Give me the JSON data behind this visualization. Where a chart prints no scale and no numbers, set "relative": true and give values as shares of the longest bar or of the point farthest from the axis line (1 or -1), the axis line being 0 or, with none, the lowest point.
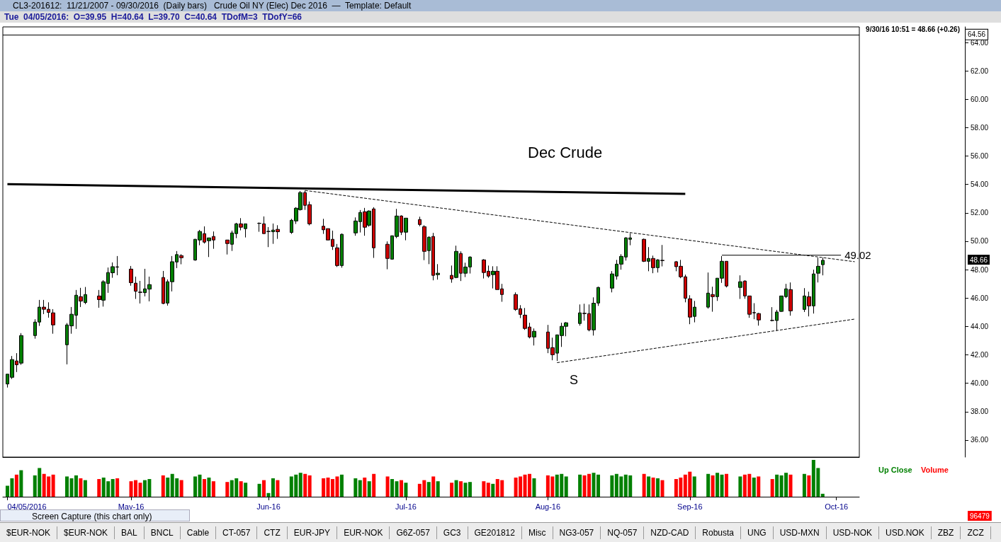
{
  "chart_data": [
    {
      "type": "candlestick",
      "title": "CL3-201612:  11/21/2007 - 09/30/2016  (Daily bars)   Crude Oil NY (Elec) Dec 2016  —  Template: Default",
      "subtitle": "Tue  04/05/2016:  O=39.95  H=40.64  L=39.70  C=40.64  TDofM=3  TDofY=66",
      "x": [
        "2016-04-05",
        "2016-04-06",
        "2016-04-07",
        "2016-04-08",
        "2016-04-11",
        "2016-04-12",
        "2016-04-13",
        "2016-04-14",
        "2016-04-15",
        "2016-04-18",
        "2016-04-19",
        "2016-04-20",
        "2016-04-21",
        "2016-04-22",
        "2016-04-25",
        "2016-04-26",
        "2016-04-27",
        "2016-04-28",
        "2016-04-29",
        "2016-05-02",
        "2016-05-03",
        "2016-05-04",
        "2016-05-05",
        "2016-05-06",
        "2016-05-09",
        "2016-05-10",
        "2016-05-11",
        "2016-05-12",
        "2016-05-13",
        "2016-05-16",
        "2016-05-17",
        "2016-05-18",
        "2016-05-19",
        "2016-05-20",
        "2016-05-23",
        "2016-05-24",
        "2016-05-25",
        "2016-05-26",
        "2016-05-27",
        "2016-05-30",
        "2016-05-31",
        "2016-06-01",
        "2016-06-02",
        "2016-06-03",
        "2016-06-06",
        "2016-06-07",
        "2016-06-08",
        "2016-06-09",
        "2016-06-10",
        "2016-06-13",
        "2016-06-14",
        "2016-06-15",
        "2016-06-16",
        "2016-06-17",
        "2016-06-20",
        "2016-06-21",
        "2016-06-22",
        "2016-06-23",
        "2016-06-24",
        "2016-06-27",
        "2016-06-28",
        "2016-06-29",
        "2016-06-30",
        "2016-07-01",
        "2016-07-04",
        "2016-07-05",
        "2016-07-06",
        "2016-07-07",
        "2016-07-08",
        "2016-07-11",
        "2016-07-12",
        "2016-07-13",
        "2016-07-14",
        "2016-07-15",
        "2016-07-18",
        "2016-07-19",
        "2016-07-20",
        "2016-07-21",
        "2016-07-22",
        "2016-07-25",
        "2016-07-26",
        "2016-07-27",
        "2016-07-28",
        "2016-07-29",
        "2016-08-01",
        "2016-08-02",
        "2016-08-03",
        "2016-08-04",
        "2016-08-05",
        "2016-08-08",
        "2016-08-09",
        "2016-08-10",
        "2016-08-11",
        "2016-08-12",
        "2016-08-15",
        "2016-08-16",
        "2016-08-17",
        "2016-08-18",
        "2016-08-19",
        "2016-08-22",
        "2016-08-23",
        "2016-08-24",
        "2016-08-25",
        "2016-08-26",
        "2016-08-29",
        "2016-08-30",
        "2016-08-31",
        "2016-09-01",
        "2016-09-02",
        "2016-09-05",
        "2016-09-06",
        "2016-09-07",
        "2016-09-08",
        "2016-09-09",
        "2016-09-12",
        "2016-09-13",
        "2016-09-14",
        "2016-09-15",
        "2016-09-16",
        "2016-09-19",
        "2016-09-20",
        "2016-09-21",
        "2016-09-22",
        "2016-09-23",
        "2016-09-26",
        "2016-09-27",
        "2016-09-28",
        "2016-09-29",
        "2016-09-30"
      ],
      "ohlc": [
        [
          39.95,
          40.64,
          39.7,
          40.64
        ],
        [
          40.42,
          41.92,
          40.3,
          41.67
        ],
        [
          41.57,
          42.12,
          40.79,
          41.3
        ],
        [
          41.42,
          43.53,
          41.3,
          43.36
        ],
        [
          43.36,
          44.51,
          43.14,
          44.31
        ],
        [
          44.31,
          45.87,
          44.04,
          45.36
        ],
        [
          45.36,
          45.87,
          44.87,
          45.21
        ],
        [
          45.21,
          45.7,
          44.62,
          44.99
        ],
        [
          44.96,
          45.22,
          43.49,
          44.11
        ],
        [
          42.71,
          44.24,
          41.33,
          44.11
        ],
        [
          44.04,
          45.37,
          43.49,
          44.86
        ],
        [
          44.79,
          46.57,
          43.83,
          46.2
        ],
        [
          46.1,
          46.72,
          45.37,
          45.79
        ],
        [
          45.69,
          46.78,
          45.57,
          46.25
        ],
        [
          46.15,
          46.57,
          45.32,
          45.89
        ],
        [
          45.85,
          47.26,
          45.4,
          47.15
        ],
        [
          47.03,
          48.15,
          46.37,
          47.8
        ],
        [
          47.78,
          48.51,
          47.43,
          48.21
        ],
        [
          48.2,
          48.96,
          47.61,
          48.18
        ],
        [
          48.04,
          48.26,
          46.87,
          47.08
        ],
        [
          47.05,
          47.51,
          45.94,
          46.48
        ],
        [
          46.42,
          47.21,
          45.62,
          46.4
        ],
        [
          46.38,
          48.06,
          46.12,
          46.65
        ],
        [
          46.63,
          47.51,
          45.77,
          46.95
        ],
        [
          47.45,
          47.91,
          45.57,
          45.62
        ],
        [
          45.65,
          47.31,
          45.47,
          47.15
        ],
        [
          47.15,
          48.96,
          46.47,
          48.56
        ],
        [
          48.54,
          49.31,
          48.11,
          49.06
        ],
        [
          48.99,
          49.09,
          48.38,
          48.84
        ],
        [
          48.68,
          50.16,
          48.63,
          50.14
        ],
        [
          50.09,
          50.8,
          49.72,
          50.69
        ],
        [
          50.54,
          51.05,
          49.84,
          49.94
        ],
        [
          50.04,
          50.24,
          48.89,
          50.24
        ],
        [
          50.34,
          50.69,
          49.47,
          50.09
        ],
        [
          50.09,
          50.09,
          49.07,
          49.84
        ],
        [
          49.79,
          50.75,
          49.32,
          50.59
        ],
        [
          50.54,
          51.3,
          50.22,
          51.23
        ],
        [
          51.23,
          51.63,
          50.77,
          50.99
        ],
        [
          50.89,
          51.23,
          50.27,
          51.23
        ],
        [
          51.26,
          51.33,
          50.67,
          51.27
        ],
        [
          51.23,
          51.75,
          50.54,
          50.54
        ],
        [
          50.7,
          51.0,
          49.59,
          50.69
        ],
        [
          50.67,
          51.25,
          49.82,
          50.79
        ],
        [
          50.84,
          51.13,
          50.17,
          50.67
        ],
        [
          50.62,
          51.58,
          50.52,
          51.48
        ],
        [
          51.43,
          52.4,
          51.22,
          52.33
        ],
        [
          52.23,
          53.54,
          52.16,
          53.43
        ],
        [
          53.43,
          53.58,
          52.21,
          52.53
        ],
        [
          52.58,
          52.8,
          51.12,
          51.23
        ],
        [
          51.06,
          51.58,
          50.52,
          50.81
        ],
        [
          50.89,
          50.89,
          50.09,
          50.09
        ],
        [
          50.14,
          50.75,
          49.39,
          49.64
        ],
        [
          49.54,
          49.81,
          48.19,
          48.29
        ],
        [
          48.29,
          50.55,
          48.14,
          50.49
        ],
        [
          50.59,
          51.68,
          50.39,
          51.43
        ],
        [
          51.38,
          52.2,
          50.62,
          52.03
        ],
        [
          52.08,
          52.35,
          50.39,
          50.99
        ],
        [
          51.13,
          52.18,
          51.03,
          52.13
        ],
        [
          52.28,
          52.4,
          48.83,
          49.54
        ],
        [
          49.79,
          49.99,
          48.03,
          48.79
        ],
        [
          48.74,
          50.39,
          48.72,
          50.39
        ],
        [
          50.34,
          52.28,
          50.22,
          51.78
        ],
        [
          51.78,
          51.83,
          50.44,
          50.64
        ],
        [
          50.64,
          51.63,
          50.07,
          51.63
        ],
        [
          51.53,
          51.73,
          51.06,
          51.18
        ],
        [
          51.03,
          51.13,
          48.67,
          49.29
        ],
        [
          49.34,
          50.34,
          48.39,
          50.29
        ],
        [
          50.34,
          50.59,
          47.25,
          47.6
        ],
        [
          47.65,
          48.39,
          47.3,
          47.75
        ],
        [
          47.6,
          48.29,
          47.08,
          47.35
        ],
        [
          47.45,
          49.69,
          47.4,
          49.29
        ],
        [
          49.14,
          49.29,
          47.2,
          47.75
        ],
        [
          47.75,
          48.49,
          47.48,
          48.19
        ],
        [
          48.19,
          48.94,
          47.73,
          48.89
        ],
        [
          48.69,
          48.74,
          47.38,
          47.8
        ],
        [
          47.89,
          48.29,
          47.43,
          47.55
        ],
        [
          47.65,
          48.24,
          46.68,
          47.89
        ],
        [
          47.89,
          48.24,
          46.6,
          46.6
        ],
        [
          46.65,
          47.0,
          45.74,
          46.25
        ],
        [
          46.25,
          46.4,
          45.1,
          45.2
        ],
        [
          45.25,
          45.5,
          44.59,
          44.85
        ],
        [
          44.8,
          45.3,
          43.76,
          43.86
        ],
        [
          43.96,
          44.26,
          43.16,
          43.26
        ],
        [
          43.26,
          43.86,
          42.66,
          43.66
        ],
        [
          43.61,
          44.11,
          42.12,
          42.46
        ],
        [
          42.51,
          43.21,
          41.62,
          42.01
        ],
        [
          42.12,
          43.41,
          41.57,
          43.41
        ],
        [
          43.36,
          44.26,
          42.56,
          44.01
        ],
        [
          44.01,
          44.31,
          43.31,
          44.26
        ],
        [
          44.21,
          45.55,
          44.06,
          44.96
        ],
        [
          44.93,
          45.6,
          44.41,
          44.91
        ],
        [
          44.91,
          45.55,
          43.66,
          43.76
        ],
        [
          43.76,
          46.05,
          43.36,
          45.64
        ],
        [
          45.65,
          46.8,
          45.45,
          46.75
        ],
        [
          46.7,
          47.9,
          46.4,
          47.7
        ],
        [
          47.55,
          48.69,
          47.3,
          48.39
        ],
        [
          48.39,
          49.09,
          48.0,
          48.94
        ],
        [
          48.89,
          50.29,
          48.64,
          50.24
        ],
        [
          50.14,
          50.57,
          49.72,
          50.24
        ],
        [
          50.14,
          50.19,
          48.54,
          48.59
        ],
        [
          48.59,
          49.59,
          47.89,
          48.79
        ],
        [
          48.79,
          48.99,
          47.75,
          48.14
        ],
        [
          48.14,
          48.74,
          47.8,
          48.69
        ],
        [
          48.66,
          49.74,
          48.23,
          48.64
        ],
        [
          48.56,
          48.61,
          47.89,
          48.21
        ],
        [
          48.24,
          48.69,
          47.4,
          47.5
        ],
        [
          47.5,
          47.65,
          45.7,
          45.99
        ],
        [
          45.95,
          46.2,
          44.16,
          44.66
        ],
        [
          44.71,
          45.8,
          44.29,
          45.36
        ],
        [
          45.36,
          47.8,
          45.26,
          46.35
        ],
        [
          46.25,
          46.8,
          45.04,
          46.1
        ],
        [
          46.1,
          47.4,
          45.8,
          47.4
        ],
        [
          47.4,
          48.96,
          47.07,
          48.59
        ],
        [
          48.59,
          48.59,
          46.75,
          46.85
        ],
        [
          46.75,
          47.6,
          45.94,
          47.15
        ],
        [
          47.2,
          47.25,
          45.95,
          46.15
        ],
        [
          46.15,
          46.15,
          44.61,
          44.86
        ],
        [
          44.98,
          45.64,
          44.51,
          44.96
        ],
        [
          44.91,
          44.96,
          44.06,
          44.46
        ],
        [
          44.43,
          45.36,
          44.36,
          44.42
        ],
        [
          44.42,
          45.17,
          43.71,
          45.02
        ],
        [
          45.06,
          46.15,
          45.02,
          46.15
        ],
        [
          46.1,
          47.0,
          46.0,
          46.65
        ],
        [
          46.6,
          47.1,
          44.76,
          45.1
        ],
        [
          45.2,
          46.7,
          45.02,
          46.15
        ],
        [
          46.1,
          46.45,
          44.71,
          45.45
        ],
        [
          45.45,
          48.0,
          44.91,
          47.7
        ],
        [
          47.75,
          48.84,
          47.1,
          48.24
        ],
        [
          48.35,
          48.84,
          47.6,
          48.66
        ]
      ],
      "series": [
        {
          "type": "line",
          "x": [
            "2016-04-05",
            "2016-08-31"
          ],
          "values": [
            54.02,
            53.34
          ],
          "color": "#000000",
          "line_style": "solid"
        },
        {
          "type": "line",
          "x": [
            "2016-06-09",
            "2016-10-07"
          ],
          "values": [
            53.58,
            48.56
          ],
          "color": "#000000",
          "line_style": "dashed"
        },
        {
          "type": "line",
          "x": [
            "2016-08-03",
            "2016-10-07"
          ],
          "values": [
            41.45,
            44.52
          ],
          "color": "#000000",
          "line_style": "dashed"
        },
        {
          "type": "line",
          "x": [
            "2016-09-08",
            "2016-10-04"
          ],
          "values": [
            49.02,
            49.02
          ],
          "color": "#000000",
          "line_style": "solid",
          "value_labels": [
            null,
            "49.02"
          ]
        }
      ],
      "xlim": [
        "2016-04-04",
        "2016-10-08"
      ],
      "ylim": [
        34.8,
        65.1
      ],
      "yticks": [
        {
          "value": 36,
          "label": "36.00"
        },
        {
          "value": 38,
          "label": "38.00"
        },
        {
          "value": 40,
          "label": "40.00"
        },
        {
          "value": 42,
          "label": "42.00"
        },
        {
          "value": 44,
          "label": "44.00"
        },
        {
          "value": 46,
          "label": "46.00"
        },
        {
          "value": 48,
          "label": "48.00"
        },
        {
          "value": 50,
          "label": "50.00"
        },
        {
          "value": 52,
          "label": "52.00"
        },
        {
          "value": 54,
          "label": "54.00"
        },
        {
          "value": 56,
          "label": "56.00"
        },
        {
          "value": 58,
          "label": "58.00"
        },
        {
          "value": 60,
          "label": "60.00"
        },
        {
          "value": 62,
          "label": "62.00"
        },
        {
          "value": 64,
          "label": "64.00"
        }
      ],
      "tick_labels": "y",
      "ref_lines": [
        {
          "axis": "y",
          "value": 64.56,
          "label": "64.56"
        }
      ],
      "annotations": [
        "Dec Crude",
        "S",
        "9/30/16 10:51 = 48.66 (+0.26)",
        "48.66"
      ]
    },
    {
      "type": "bar",
      "relative": true,
      "x": [
        "2016-04-05",
        "2016-04-06",
        "2016-04-07",
        "2016-04-08",
        "2016-04-11",
        "2016-04-12",
        "2016-04-13",
        "2016-04-14",
        "2016-04-15",
        "2016-04-18",
        "2016-04-19",
        "2016-04-20",
        "2016-04-21",
        "2016-04-22",
        "2016-04-25",
        "2016-04-26",
        "2016-04-27",
        "2016-04-28",
        "2016-04-29",
        "2016-05-02",
        "2016-05-03",
        "2016-05-04",
        "2016-05-05",
        "2016-05-06",
        "2016-05-09",
        "2016-05-10",
        "2016-05-11",
        "2016-05-12",
        "2016-05-13",
        "2016-05-16",
        "2016-05-17",
        "2016-05-18",
        "2016-05-19",
        "2016-05-20",
        "2016-05-23",
        "2016-05-24",
        "2016-05-25",
        "2016-05-26",
        "2016-05-27",
        "2016-05-30",
        "2016-05-31",
        "2016-06-01",
        "2016-06-02",
        "2016-06-03",
        "2016-06-06",
        "2016-06-07",
        "2016-06-08",
        "2016-06-09",
        "2016-06-10",
        "2016-06-13",
        "2016-06-14",
        "2016-06-15",
        "2016-06-16",
        "2016-06-17",
        "2016-06-20",
        "2016-06-21",
        "2016-06-22",
        "2016-06-23",
        "2016-06-24",
        "2016-06-27",
        "2016-06-28",
        "2016-06-29",
        "2016-06-30",
        "2016-07-01",
        "2016-07-04",
        "2016-07-05",
        "2016-07-06",
        "2016-07-07",
        "2016-07-08",
        "2016-07-11",
        "2016-07-12",
        "2016-07-13",
        "2016-07-14",
        "2016-07-15",
        "2016-07-18",
        "2016-07-19",
        "2016-07-20",
        "2016-07-21",
        "2016-07-22",
        "2016-07-25",
        "2016-07-26",
        "2016-07-27",
        "2016-07-28",
        "2016-07-29",
        "2016-08-01",
        "2016-08-02",
        "2016-08-03",
        "2016-08-04",
        "2016-08-05",
        "2016-08-08",
        "2016-08-09",
        "2016-08-10",
        "2016-08-11",
        "2016-08-12",
        "2016-08-15",
        "2016-08-16",
        "2016-08-17",
        "2016-08-18",
        "2016-08-19",
        "2016-08-22",
        "2016-08-23",
        "2016-08-24",
        "2016-08-25",
        "2016-08-26",
        "2016-08-29",
        "2016-08-30",
        "2016-08-31",
        "2016-09-01",
        "2016-09-02",
        "2016-09-05",
        "2016-09-06",
        "2016-09-07",
        "2016-09-08",
        "2016-09-09",
        "2016-09-12",
        "2016-09-13",
        "2016-09-14",
        "2016-09-15",
        "2016-09-16",
        "2016-09-19",
        "2016-09-20",
        "2016-09-21",
        "2016-09-22",
        "2016-09-23",
        "2016-09-26",
        "2016-09-27",
        "2016-09-28",
        "2016-09-29",
        "2016-09-30"
      ],
      "values": [
        0.3,
        0.5,
        0.6,
        0.72,
        0.58,
        0.78,
        0.62,
        0.55,
        0.6,
        0.55,
        0.5,
        0.58,
        0.5,
        0.45,
        0.48,
        0.52,
        0.42,
        0.48,
        0.5,
        0.42,
        0.45,
        0.38,
        0.45,
        0.48,
        0.58,
        0.52,
        0.62,
        0.5,
        0.45,
        0.55,
        0.6,
        0.48,
        0.52,
        0.42,
        0.4,
        0.45,
        0.5,
        0.42,
        0.38,
        0.35,
        0.45,
        0.1,
        0.5,
        0.45,
        0.55,
        0.6,
        0.65,
        0.62,
        0.58,
        0.5,
        0.52,
        0.48,
        0.55,
        0.6,
        0.5,
        0.45,
        0.52,
        0.42,
        0.62,
        0.55,
        0.48,
        0.42,
        0.45,
        0.38,
        0.35,
        0.45,
        0.4,
        0.55,
        0.42,
        0.38,
        0.45,
        0.42,
        0.38,
        0.4,
        0.42,
        0.38,
        0.35,
        0.48,
        0.45,
        0.52,
        0.55,
        0.6,
        0.62,
        0.5,
        0.58,
        0.55,
        0.6,
        0.62,
        0.55,
        0.6,
        0.58,
        0.62,
        0.65,
        0.6,
        0.58,
        0.62,
        0.55,
        0.6,
        0.58,
        0.62,
        0.55,
        0.52,
        0.5,
        0.45,
        0.48,
        0.52,
        0.6,
        0.68,
        0.55,
        0.62,
        0.58,
        0.65,
        0.6,
        0.62,
        0.55,
        0.6,
        0.62,
        0.52,
        0.55,
        0.48,
        0.6,
        0.58,
        0.65,
        0.6,
        0.62,
        0.58,
        1.0,
        0.78,
        0.08
      ],
      "colors": [
        "#008000",
        "#008000",
        "#ff0000",
        "#008000",
        "#008000",
        "#008000",
        "#ff0000",
        "#ff0000",
        "#ff0000",
        "#008000",
        "#008000",
        "#008000",
        "#ff0000",
        "#008000",
        "#ff0000",
        "#008000",
        "#008000",
        "#008000",
        "#ff0000",
        "#ff0000",
        "#ff0000",
        "#ff0000",
        "#008000",
        "#008000",
        "#ff0000",
        "#008000",
        "#008000",
        "#008000",
        "#ff0000",
        "#008000",
        "#008000",
        "#ff0000",
        "#008000",
        "#ff0000",
        "#ff0000",
        "#008000",
        "#008000",
        "#ff0000",
        "#008000",
        "#008000",
        "#ff0000",
        "#008000",
        "#008000",
        "#ff0000",
        "#008000",
        "#008000",
        "#008000",
        "#ff0000",
        "#ff0000",
        "#ff0000",
        "#ff0000",
        "#ff0000",
        "#ff0000",
        "#008000",
        "#008000",
        "#008000",
        "#ff0000",
        "#008000",
        "#ff0000",
        "#ff0000",
        "#008000",
        "#008000",
        "#ff0000",
        "#008000",
        "#ff0000",
        "#ff0000",
        "#008000",
        "#ff0000",
        "#008000",
        "#ff0000",
        "#008000",
        "#ff0000",
        "#008000",
        "#008000",
        "#ff0000",
        "#ff0000",
        "#008000",
        "#ff0000",
        "#ff0000",
        "#ff0000",
        "#ff0000",
        "#ff0000",
        "#ff0000",
        "#008000",
        "#ff0000",
        "#ff0000",
        "#008000",
        "#008000",
        "#008000",
        "#008000",
        "#ff0000",
        "#ff0000",
        "#008000",
        "#008000",
        "#008000",
        "#008000",
        "#008000",
        "#008000",
        "#008000",
        "#ff0000",
        "#008000",
        "#ff0000",
        "#008000",
        "#ff0000",
        "#ff0000",
        "#ff0000",
        "#ff0000",
        "#ff0000",
        "#008000",
        "#008000",
        "#ff0000",
        "#008000",
        "#008000",
        "#ff0000",
        "#008000",
        "#ff0000",
        "#ff0000",
        "#008000",
        "#ff0000",
        "#ff0000",
        "#008000",
        "#008000",
        "#008000",
        "#ff0000",
        "#008000",
        "#ff0000",
        "#008000",
        "#008000",
        "#008000"
      ],
      "xlim": [
        "2016-04-04",
        "2016-10-08"
      ],
      "xticks": [
        {
          "value": "2016-04-05",
          "label": "04/05/2016"
        },
        {
          "value": "2016-05-02",
          "label": "May-16"
        },
        {
          "value": "2016-06-01",
          "label": "Jun-16"
        },
        {
          "value": "2016-07-01",
          "label": "Jul-16"
        },
        {
          "value": "2016-08-01",
          "label": "Aug-16"
        },
        {
          "value": "2016-09-01",
          "label": "Sep-16"
        },
        {
          "value": "2016-10-03",
          "label": "Oct-16"
        }
      ],
      "annotations": [
        "Up Close",
        "Volume",
        "96479",
        "Screen Capture (this chart only)",
        "$EUR-NOK",
        "$EUR-NOK",
        "BAL",
        "BNCL",
        "Cable",
        "CT-057",
        "CTZ",
        "EUR-JPY",
        "EUR-NOK",
        "G6Z-057",
        "GC3",
        "GE201812",
        "Misc",
        "NG3-057",
        "NQ-057",
        "NZD-CAD",
        "Robusta",
        "UNG",
        "USD-MXN",
        "USD-NOK",
        "USD.NOK",
        "ZBZ",
        "ZCZ"
      ]
    }
  ]
}
